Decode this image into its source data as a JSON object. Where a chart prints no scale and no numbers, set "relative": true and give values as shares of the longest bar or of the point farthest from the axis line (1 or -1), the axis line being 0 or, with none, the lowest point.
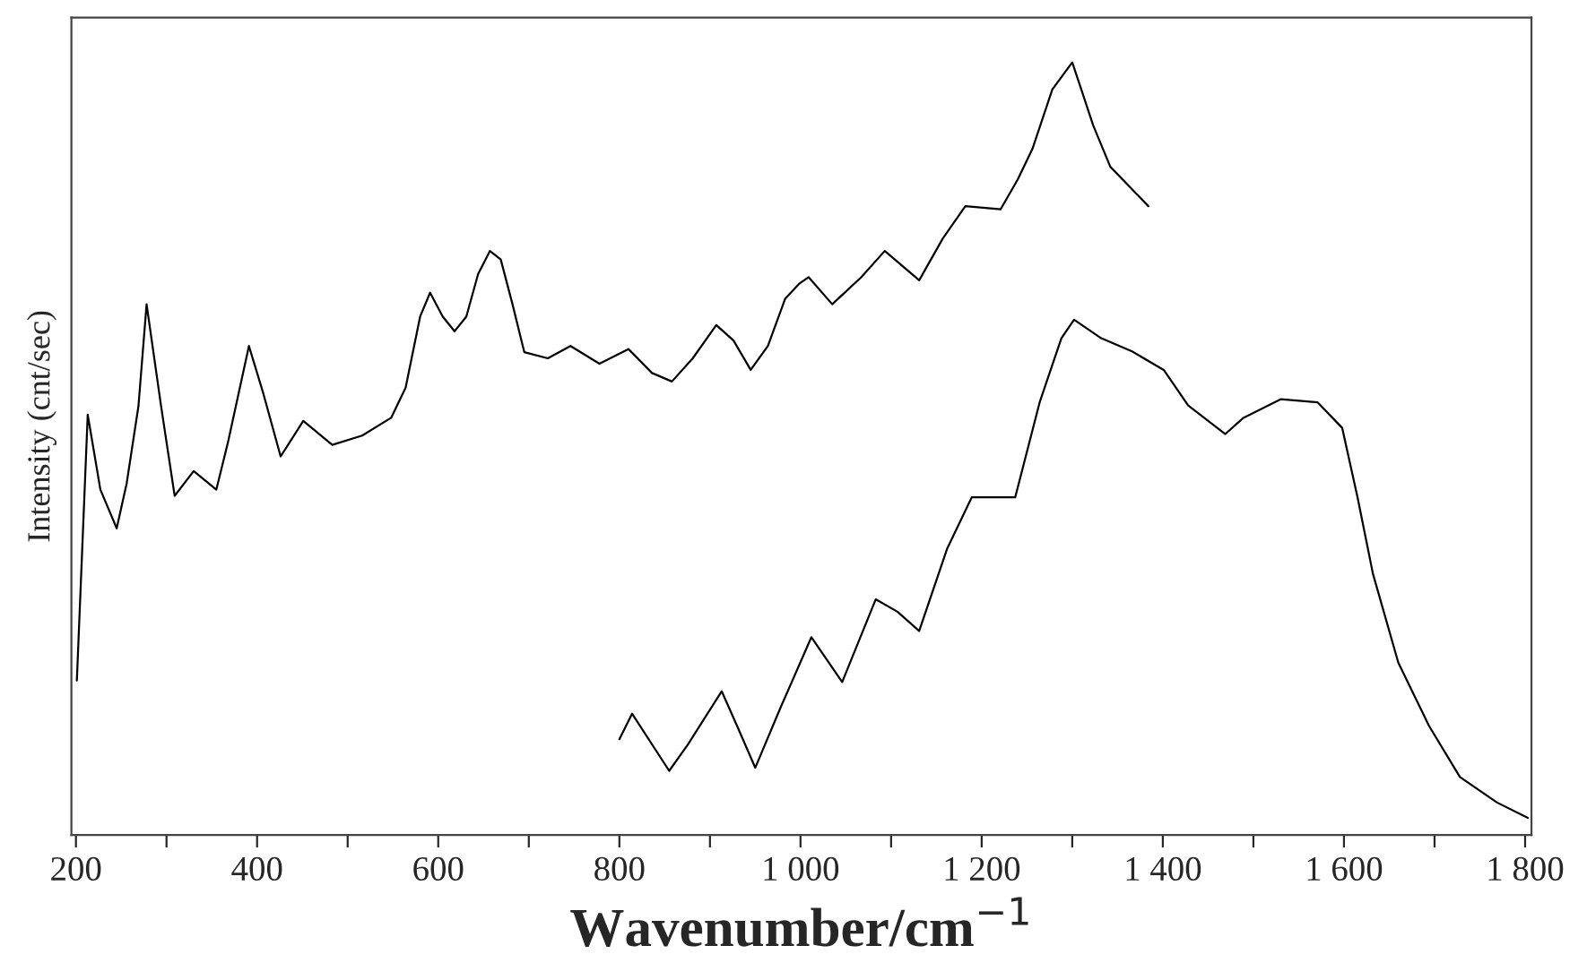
{
  "chart_data": {
    "type": "line",
    "relative": true,
    "xlabel": "Wavenumber/cm$^{−1}$",
    "ylabel": "Intensity (cnt/sec)",
    "xlim": [
      195,
      1807
    ],
    "xticks": [
      200,
      {
        "value": 300,
        "label": null
      },
      400,
      {
        "value": 500,
        "label": null
      },
      600,
      {
        "value": 700,
        "label": null
      },
      800,
      {
        "value": 900,
        "label": null
      },
      {
        "value": 1000,
        "label": "1 000"
      },
      {
        "value": 1100,
        "label": null
      },
      {
        "value": 1200,
        "label": "1 200"
      },
      {
        "value": 1300,
        "label": null
      },
      {
        "value": 1400,
        "label": "1 400"
      },
      {
        "value": 1500,
        "label": null
      },
      {
        "value": 1600,
        "label": "1 600"
      },
      {
        "value": 1700,
        "label": null
      },
      {
        "value": 1800,
        "label": "1 800"
      }
    ],
    "grid": false,
    "marker": "none",
    "line_style": "solid",
    "series": [
      {
        "color": "#000000",
        "x": [
          201,
          213,
          227,
          245,
          256,
          269,
          278,
          294,
          309,
          330,
          355,
          368,
          391,
          407,
          426,
          451,
          483,
          516,
          548,
          564,
          580,
          591,
          605,
          618,
          631,
          644,
          657,
          669,
          682,
          695,
          721,
          746,
          778,
          810,
          836,
          858,
          881,
          907,
          926,
          945,
          964,
          983,
          999,
          1009,
          1035,
          1067,
          1093,
          1131,
          1157,
          1182,
          1221,
          1240,
          1256,
          1278,
          1300,
          1310,
          1323,
          1342,
          1361,
          1384
        ],
        "values": [
          0.2,
          0.544,
          0.447,
          0.397,
          0.455,
          0.555,
          0.687,
          0.555,
          0.439,
          0.471,
          0.447,
          0.509,
          0.633,
          0.571,
          0.49,
          0.536,
          0.505,
          0.517,
          0.54,
          0.579,
          0.671,
          0.702,
          0.671,
          0.652,
          0.671,
          0.726,
          0.756,
          0.745,
          0.687,
          0.625,
          0.617,
          0.633,
          0.61,
          0.629,
          0.598,
          0.587,
          0.617,
          0.66,
          0.64,
          0.602,
          0.633,
          0.694,
          0.714,
          0.722,
          0.687,
          0.722,
          0.756,
          0.718,
          0.772,
          0.814,
          0.81,
          0.849,
          0.888,
          0.965,
          1,
          0.965,
          0.919,
          0.865,
          0.842,
          0.814
        ]
      },
      {
        "color": "#000000",
        "x": [
          800,
          814,
          855,
          875,
          913,
          930,
          950,
          978,
          1012,
          1046,
          1083,
          1107,
          1131,
          1162,
          1189,
          1237,
          1264,
          1288,
          1302,
          1332,
          1366,
          1401,
          1428,
          1469,
          1489,
          1530,
          1571,
          1598,
          1615,
          1632,
          1660,
          1694,
          1728,
          1769,
          1803
        ],
        "values": [
          0.124,
          0.157,
          0.083,
          0.116,
          0.186,
          0.141,
          0.087,
          0.165,
          0.256,
          0.198,
          0.305,
          0.289,
          0.264,
          0.371,
          0.437,
          0.437,
          0.56,
          0.643,
          0.667,
          0.643,
          0.626,
          0.602,
          0.556,
          0.519,
          0.54,
          0.564,
          0.56,
          0.527,
          0.437,
          0.338,
          0.223,
          0.141,
          0.075,
          0.042,
          0.022
        ]
      }
    ]
  }
}
